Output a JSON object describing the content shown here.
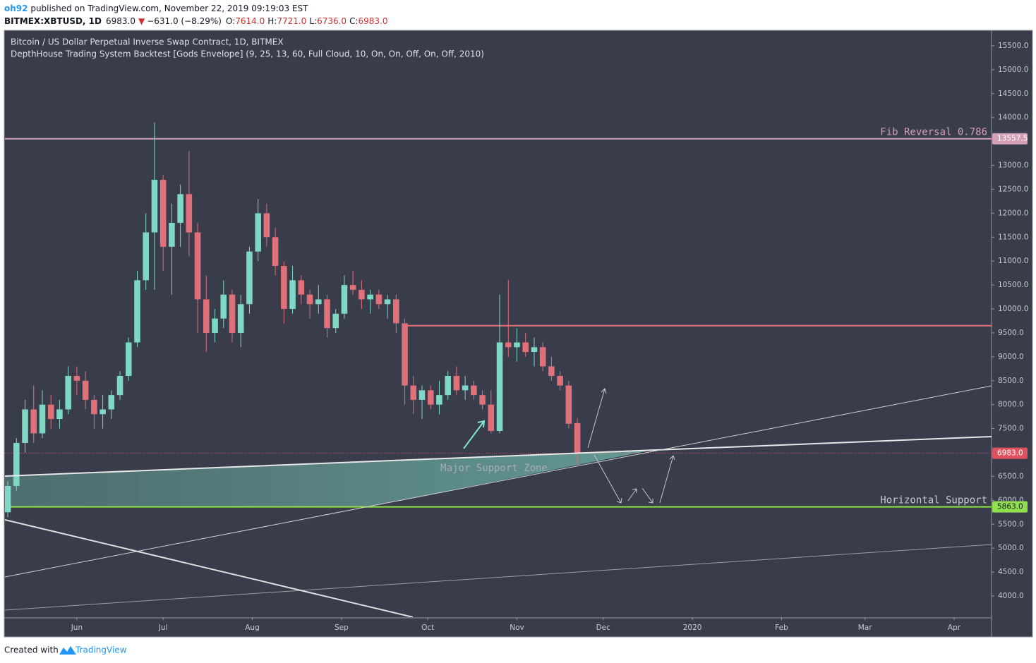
{
  "header": {
    "author": "oh92",
    "published": "published on TradingView.com, November 22, 2019 09:19:03 EST",
    "symbol": "BITMEX:XBTUSD, 1D",
    "last": "6983.0",
    "change": "−631.0 (−8.29%)",
    "ohlc": [
      {
        "key": "O:",
        "value": "7614.0"
      },
      {
        "key": "H:",
        "value": "7721.0"
      },
      {
        "key": "L:",
        "value": "6736.0"
      },
      {
        "key": "C:",
        "value": "6983.0"
      }
    ]
  },
  "footer": {
    "created": "Created with",
    "brand": "TradingView"
  },
  "chart_data": {
    "type": "candlestick",
    "legend": [
      "Bitcoin / US Dollar Perpetual Inverse Swap Contract, 1D, BITMEX",
      "DepthHouse Trading System Backtest [Gods Envelope] (9, 25, 13, 60, Full Cloud, 10, On, On, Off, On, Off, 2010)"
    ],
    "up_color": "#7fd8c4",
    "down_color": "#e0707a",
    "xlim": [
      0,
      343
    ],
    "xticks": [
      {
        "value": 25,
        "label": "Jun"
      },
      {
        "value": 55,
        "label": "Jul"
      },
      {
        "value": 86,
        "label": "Aug"
      },
      {
        "value": 117,
        "label": "Sep"
      },
      {
        "value": 147,
        "label": "Oct"
      },
      {
        "value": 178,
        "label": "Nov"
      },
      {
        "value": 208,
        "label": "Dec"
      },
      {
        "value": 239,
        "label": "2020"
      },
      {
        "value": 270,
        "label": "Feb"
      },
      {
        "value": 299,
        "label": "Mar"
      },
      {
        "value": 330,
        "label": "Apr"
      }
    ],
    "ylim": [
      3558,
      15809
    ],
    "yticks": [
      {
        "value": 4000,
        "label": "4000.0"
      },
      {
        "value": 4500,
        "label": "4500.0"
      },
      {
        "value": 5000,
        "label": "5000.0"
      },
      {
        "value": 5500,
        "label": "5500.0"
      },
      {
        "value": 6000,
        "label": "6000.0"
      },
      {
        "value": 6500,
        "label": "6500.0"
      },
      {
        "value": 7500,
        "label": "7500.0"
      },
      {
        "value": 8000,
        "label": "8000.0"
      },
      {
        "value": 8500,
        "label": "8500.0"
      },
      {
        "value": 9000,
        "label": "9000.0"
      },
      {
        "value": 9500,
        "label": "9500.0"
      },
      {
        "value": 10000,
        "label": "10000.0"
      },
      {
        "value": 10500,
        "label": "10500.0"
      },
      {
        "value": 11000,
        "label": "11000.0"
      },
      {
        "value": 11500,
        "label": "11500.0"
      },
      {
        "value": 12000,
        "label": "12000.0"
      },
      {
        "value": 12500,
        "label": "12500.0"
      },
      {
        "value": 13000,
        "label": "13000.0"
      },
      {
        "value": 14000,
        "label": "14000.0"
      },
      {
        "value": 14500,
        "label": "14500.0"
      },
      {
        "value": 15000,
        "label": "15000.0"
      },
      {
        "value": 15500,
        "label": "15500.0"
      }
    ],
    "levels": [
      {
        "name": "Fib Reversal 0.786",
        "value": 13557.5,
        "label": "13557.5",
        "color": "#d4a0b8",
        "text_color": "#ffffff"
      },
      {
        "name": "Horizontal Support",
        "value": 5863,
        "label": "5863.0",
        "color": "#8fe04c",
        "text_color": "#131722"
      },
      {
        "value": 6983,
        "label": "6983.0",
        "color": "#e0525f",
        "text_color": "#ffffff",
        "dotted": true
      },
      {
        "value": 9650,
        "color": "#e0707a",
        "from": 139
      }
    ],
    "annotations": [
      "Major Support Zone"
    ],
    "candles": {
      "x": [
        1,
        4,
        7,
        10,
        13,
        16,
        19,
        22,
        25,
        28,
        31,
        34,
        37,
        40,
        43,
        46,
        49,
        52,
        55,
        58,
        61,
        64,
        67,
        70,
        73,
        76,
        79,
        82,
        85,
        88,
        91,
        94,
        97,
        100,
        103,
        106,
        109,
        112,
        115,
        118,
        121,
        124,
        127,
        130,
        133,
        136,
        139,
        142,
        145,
        148,
        151,
        154,
        157,
        160,
        163,
        166,
        169,
        172,
        175,
        178,
        181,
        184,
        187,
        190,
        193,
        196,
        199
      ],
      "open": [
        5750,
        6300,
        7200,
        7900,
        7400,
        8000,
        7700,
        7900,
        8600,
        8500,
        8100,
        7800,
        7900,
        8200,
        8600,
        9300,
        10600,
        11600,
        12700,
        11300,
        11800,
        12400,
        11600,
        10200,
        9500,
        9800,
        10300,
        9500,
        10100,
        11200,
        12000,
        11500,
        10900,
        10000,
        10600,
        10300,
        10100,
        10200,
        9600,
        9900,
        10500,
        10400,
        10200,
        10300,
        10100,
        10200,
        9700,
        8400,
        8100,
        8300,
        8000,
        8200,
        8600,
        8300,
        8400,
        8200,
        8000,
        7450,
        9300,
        9200,
        9300,
        9100,
        9200,
        8800,
        8600,
        8400,
        7614
      ],
      "high": [
        6400,
        7300,
        8100,
        8400,
        8300,
        8200,
        8100,
        8800,
        8800,
        8700,
        8200,
        8200,
        8300,
        8700,
        9400,
        10800,
        12000,
        13900,
        12800,
        12200,
        12600,
        13300,
        11800,
        10700,
        10000,
        10600,
        10400,
        10300,
        11300,
        12300,
        12200,
        11700,
        11000,
        10900,
        10700,
        10400,
        10500,
        10300,
        10000,
        10700,
        10800,
        10600,
        10400,
        10400,
        10300,
        10300,
        9800,
        8600,
        8400,
        8400,
        8500,
        8700,
        8800,
        8600,
        8500,
        8300,
        8300,
        10300,
        10600,
        9600,
        9500,
        9400,
        9300,
        9000,
        8700,
        8500,
        7721
      ],
      "low": [
        5650,
        6200,
        7000,
        7200,
        7300,
        7500,
        7500,
        7800,
        8200,
        7900,
        7500,
        7500,
        7700,
        8100,
        8500,
        9200,
        10400,
        10400,
        10800,
        10300,
        11300,
        11100,
        9500,
        9100,
        9300,
        9600,
        9300,
        9200,
        9900,
        11000,
        11300,
        10700,
        9700,
        9900,
        10100,
        9800,
        9900,
        9400,
        9500,
        9800,
        10300,
        10000,
        9900,
        10000,
        9800,
        9500,
        8000,
        7800,
        7700,
        7900,
        7800,
        8100,
        8200,
        8100,
        8100,
        7900,
        7400,
        7400,
        9000,
        8900,
        9000,
        8800,
        8700,
        8500,
        8300,
        7500,
        6736
      ],
      "close": [
        6300,
        7200,
        7900,
        7400,
        8000,
        7700,
        7900,
        8600,
        8500,
        8100,
        7800,
        7900,
        8200,
        8600,
        9300,
        10600,
        11600,
        12700,
        11300,
        11800,
        12400,
        11600,
        10200,
        9500,
        9800,
        10300,
        9500,
        10100,
        11200,
        12000,
        11500,
        10900,
        10000,
        10600,
        10300,
        10100,
        10200,
        9600,
        9900,
        10500,
        10400,
        10200,
        10300,
        10100,
        10200,
        9700,
        8400,
        8100,
        8300,
        8000,
        8200,
        8600,
        8300,
        8400,
        8200,
        8000,
        7450,
        9300,
        9200,
        9300,
        9100,
        9200,
        8800,
        8600,
        8400,
        7600,
        6983
      ]
    }
  }
}
